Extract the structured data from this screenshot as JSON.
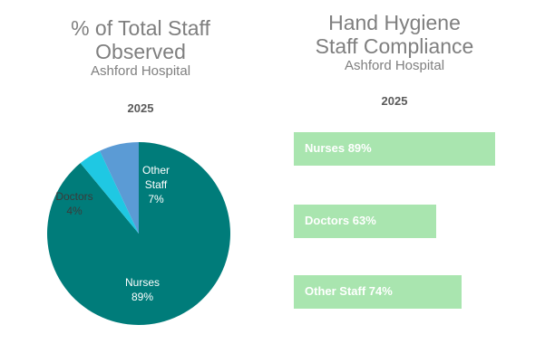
{
  "left_chart": {
    "title_line1": "% of Total Staff",
    "title_line2": "Observed",
    "subtitle": "Ashford Hospital",
    "year": "2025"
  },
  "right_chart": {
    "title_line1": "Hand Hygiene",
    "title_line2": "Staff Compliance",
    "subtitle": "Ashford Hospital",
    "year": "2025"
  },
  "chart_data": [
    {
      "type": "pie",
      "title": "% of Total Staff Observed",
      "subtitle": "Ashford Hospital 2025",
      "slices": [
        {
          "label": "Nurses",
          "value": 89,
          "color": "#007C7A"
        },
        {
          "label": "Doctors",
          "value": 4,
          "color": "#1FC8E3"
        },
        {
          "label": "Other Staff",
          "value": 7,
          "color": "#5B9BD5"
        }
      ],
      "data_labels": [
        {
          "line1": "Nurses",
          "line2": "89%"
        },
        {
          "line1": "Doctors",
          "line2": "4%"
        },
        {
          "line1": "Other",
          "line2": "Staff",
          "line3": "7%"
        }
      ]
    },
    {
      "type": "bar",
      "title": "Hand Hygiene Staff Compliance",
      "subtitle": "Ashford Hospital 2025",
      "orientation": "horizontal",
      "categories": [
        "Nurses",
        "Doctors",
        "Other Staff"
      ],
      "values": [
        89,
        63,
        74
      ],
      "unit": "%",
      "bar_labels": [
        "Nurses 89%",
        "Doctors 63%",
        "Other Staff 74%"
      ],
      "color": "#A9E5AF"
    }
  ]
}
